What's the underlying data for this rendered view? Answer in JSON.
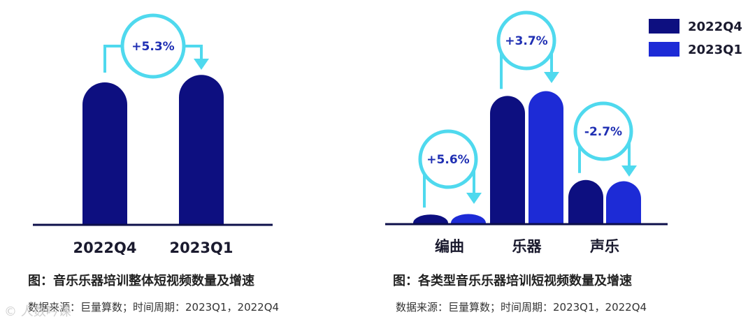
{
  "colors": {
    "q4": "#0d0f80",
    "q1": "#1d2bd6",
    "ring": "#4fd9ee",
    "axis": "#0d0f4a"
  },
  "chart_data": [
    {
      "type": "bar",
      "title": "图：音乐乐器培训整体短视频数量及增速",
      "source": "数据来源：巨量算数；时间周期：2023Q1，2022Q4",
      "categories": [
        "2022Q4",
        "2023Q1"
      ],
      "values": [
        80,
        84.2
      ],
      "growth": [
        "+5.3%"
      ],
      "ylim": [
        0,
        100
      ]
    },
    {
      "type": "bar",
      "title": "图：各类型音乐乐器培训短视频数量及增速",
      "source": "数据来源：巨量算数；时间周期：2023Q1，2022Q4",
      "categories": [
        "编曲",
        "乐器",
        "声乐"
      ],
      "series": [
        {
          "name": "2022Q4",
          "values": [
            5.4,
            72.0,
            24.8
          ]
        },
        {
          "name": "2023Q1",
          "values": [
            5.7,
            74.7,
            24.1
          ]
        }
      ],
      "growth": [
        "+5.6%",
        "+3.7%",
        "-2.7%"
      ],
      "legend": "top-right",
      "ylim": [
        0,
        100
      ]
    }
  ],
  "watermark": "© 人数吟课"
}
